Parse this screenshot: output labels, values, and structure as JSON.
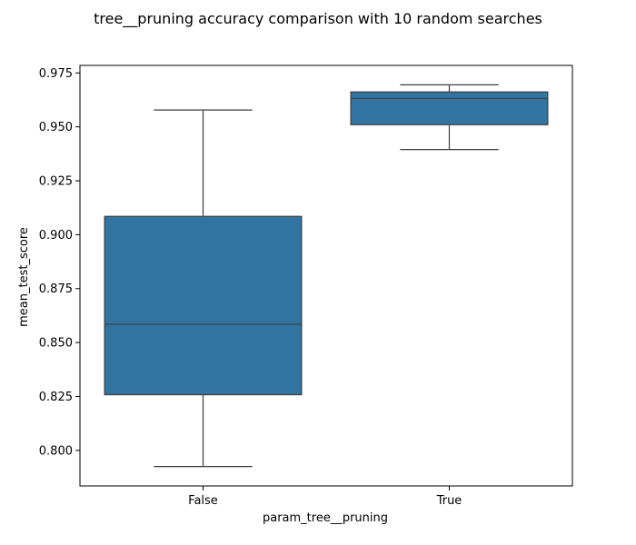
{
  "chart_data": {
    "type": "box",
    "title": "tree__pruning accuracy comparison with 10 random searches",
    "xlabel": "param_tree__pruning",
    "ylabel": "mean_test_score",
    "categories": [
      "False",
      "True"
    ],
    "boxes": [
      {
        "category": "False",
        "whisker_low": 0.7925,
        "q1": 0.8258,
        "median": 0.8585,
        "q3": 0.9085,
        "whisker_high": 0.9578
      },
      {
        "category": "True",
        "whisker_low": 0.9395,
        "q1": 0.951,
        "median": 0.9632,
        "q3": 0.9662,
        "whisker_high": 0.9695
      }
    ],
    "ylim": [
      0.7835,
      0.9785
    ],
    "yticks": [
      0.8,
      0.825,
      0.85,
      0.875,
      0.9,
      0.925,
      0.95,
      0.975
    ],
    "ytick_labels": [
      "0.800",
      "0.825",
      "0.850",
      "0.875",
      "0.900",
      "0.925",
      "0.950",
      "0.975"
    ],
    "grid": false,
    "colors": {
      "box_fill": "#3274a1",
      "lines": "#3d3d3d",
      "axes": "#000000"
    }
  }
}
